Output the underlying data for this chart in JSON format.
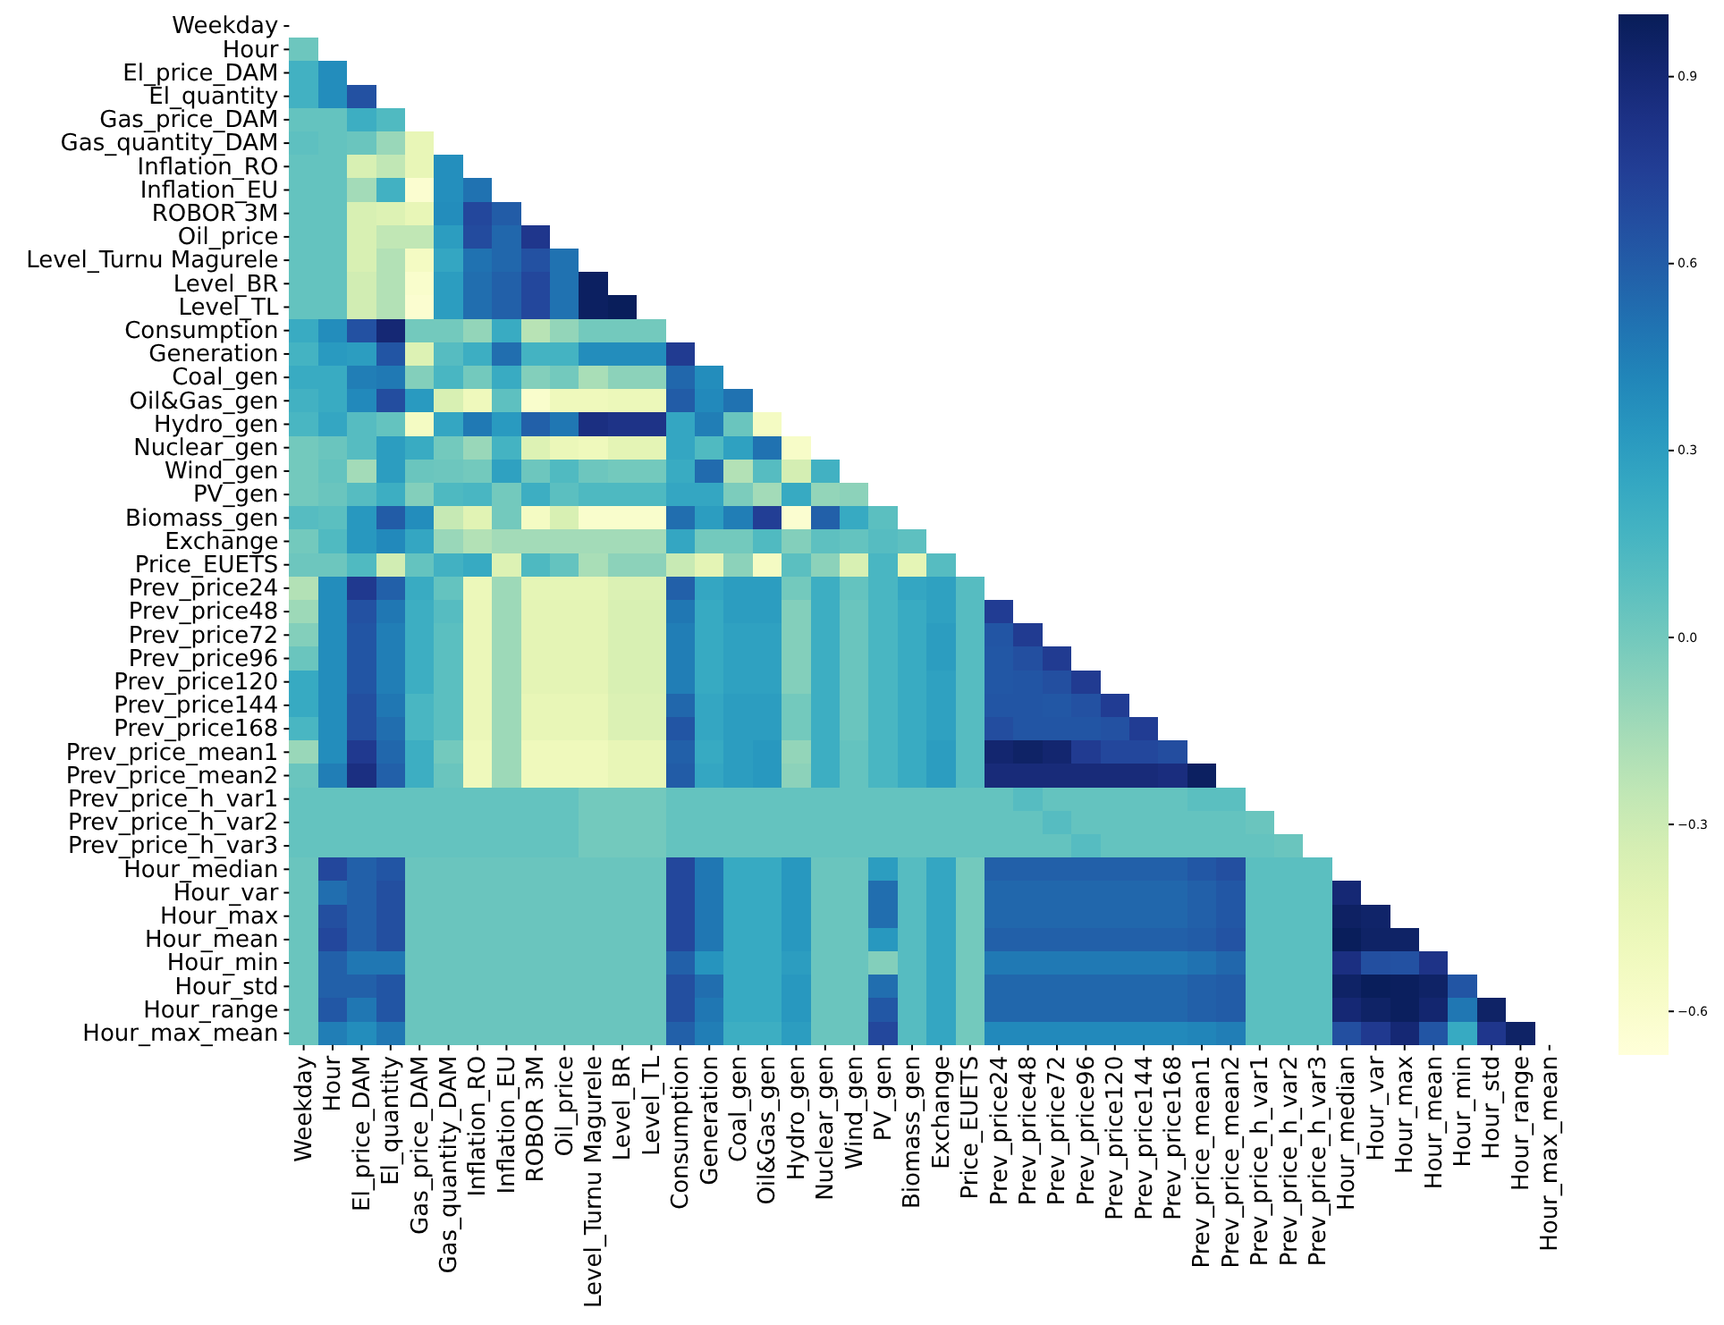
{
  "chart_data": {
    "type": "heatmap",
    "categories": [
      "Weekday",
      "Hour",
      "El_price_DAM",
      "El_quantity",
      "Gas_price_DAM",
      "Gas_quantity_DAM",
      "Inflation_RO",
      "Inflation_EU",
      "ROBOR 3M",
      "Oil_price",
      "Level_Turnu Magurele",
      "Level_BR",
      "Level_TL",
      "Consumption",
      "Generation",
      "Coal_gen",
      "Oil&Gas_gen",
      "Hydro_gen",
      "Nuclear_gen",
      "Wind_gen",
      "PV_gen",
      "Biomass_gen",
      "Exchange",
      "Price_EUETS",
      "Prev_price24",
      "Prev_price48",
      "Prev_price72",
      "Prev_price96",
      "Prev_price120",
      "Prev_price144",
      "Prev_price168",
      "Prev_price_mean1",
      "Prev_price_mean2",
      "Prev_price_h_var1",
      "Prev_price_h_var2",
      "Prev_price_h_var3",
      "Hour_median",
      "Hour_var",
      "Hour_max",
      "Hour_mean",
      "Hour_min",
      "Hour_std",
      "Hour_range",
      "Hour_max_mean"
    ],
    "y_categories": [
      "Weekday",
      "Hour",
      "El_price_DAM",
      "El_quantity",
      "Gas_price_DAM",
      "Gas_quantity_DAM",
      "Inflation_RO",
      "Inflation_EU",
      "ROBOR 3M",
      "Oil_price",
      "Level_Turnu Magurele",
      "Level_BR",
      "Level_TL",
      "Consumption",
      "Generation",
      "Coal_gen",
      "Oil&Gas_gen",
      "Hydro_gen",
      "Nuclear_gen",
      "Wind_gen",
      "PV_gen",
      "Biomass_gen",
      "Exchange",
      "Price_EUETS",
      "Prev_price24",
      "Prev_price48",
      "Prev_price72",
      "Prev_price96",
      "Prev_price120",
      "Prev_price144",
      "Prev_price168",
      "Prev_price_mean1",
      "Prev_price_mean2",
      "Prev_price_h_var1",
      "Prev_price_h_var2",
      "Prev_price_h_var3",
      "Hour_median",
      "Hour_var",
      "Hour_max",
      "Hour_mean",
      "Hour_min",
      "Hour_std",
      "Hour_range",
      "Hour_max_mean"
    ],
    "clim": [
      -0.67,
      1.0
    ],
    "cticks": [
      0.9,
      0.6,
      0.3,
      {
        "value": 0,
        "label": "0.0"
      },
      {
        "value": -0.3,
        "label": "−0.3"
      },
      {
        "value": -0.6,
        "label": "−0.6"
      }
    ],
    "cells": [
      [
        null,
        null,
        null,
        null,
        null,
        null,
        null,
        null,
        null,
        null,
        null,
        null,
        null,
        null,
        null,
        null,
        null,
        null,
        null,
        null,
        null,
        null,
        null,
        null,
        null,
        null,
        null,
        null,
        null,
        null,
        null,
        null,
        null,
        null,
        null,
        null,
        null,
        null,
        null,
        null,
        null,
        null,
        null,
        null
      ],
      [
        0.02,
        null,
        null,
        null,
        null,
        null,
        null,
        null,
        null,
        null,
        null,
        null,
        null,
        null,
        null,
        null,
        null,
        null,
        null,
        null,
        null,
        null,
        null,
        null,
        null,
        null,
        null,
        null,
        null,
        null,
        null,
        null,
        null,
        null,
        null,
        null,
        null,
        null,
        null,
        null,
        null,
        null,
        null,
        null
      ],
      [
        0.18,
        0.38,
        null,
        null,
        null,
        null,
        null,
        null,
        null,
        null,
        null,
        null,
        null,
        null,
        null,
        null,
        null,
        null,
        null,
        null,
        null,
        null,
        null,
        null,
        null,
        null,
        null,
        null,
        null,
        null,
        null,
        null,
        null,
        null,
        null,
        null,
        null,
        null,
        null,
        null,
        null,
        null,
        null,
        null
      ],
      [
        0.18,
        0.38,
        0.65,
        null,
        null,
        null,
        null,
        null,
        null,
        null,
        null,
        null,
        null,
        null,
        null,
        null,
        null,
        null,
        null,
        null,
        null,
        null,
        null,
        null,
        null,
        null,
        null,
        null,
        null,
        null,
        null,
        null,
        null,
        null,
        null,
        null,
        null,
        null,
        null,
        null,
        null,
        null,
        null,
        null
      ],
      [
        0.05,
        0.05,
        0.2,
        0.12,
        null,
        null,
        null,
        null,
        null,
        null,
        null,
        null,
        null,
        null,
        null,
        null,
        null,
        null,
        null,
        null,
        null,
        null,
        null,
        null,
        null,
        null,
        null,
        null,
        null,
        null,
        null,
        null,
        null,
        null,
        null,
        null,
        null,
        null,
        null,
        null,
        null,
        null,
        null,
        null
      ],
      [
        0.07,
        0.05,
        0.03,
        -0.12,
        -0.45,
        null,
        null,
        null,
        null,
        null,
        null,
        null,
        null,
        null,
        null,
        null,
        null,
        null,
        null,
        null,
        null,
        null,
        null,
        null,
        null,
        null,
        null,
        null,
        null,
        null,
        null,
        null,
        null,
        null,
        null,
        null,
        null,
        null,
        null,
        null,
        null,
        null,
        null,
        null
      ],
      [
        0.05,
        0.05,
        -0.35,
        -0.25,
        -0.45,
        0.37,
        null,
        null,
        null,
        null,
        null,
        null,
        null,
        null,
        null,
        null,
        null,
        null,
        null,
        null,
        null,
        null,
        null,
        null,
        null,
        null,
        null,
        null,
        null,
        null,
        null,
        null,
        null,
        null,
        null,
        null,
        null,
        null,
        null,
        null,
        null,
        null,
        null,
        null
      ],
      [
        0.05,
        0.05,
        -0.15,
        0.18,
        -0.62,
        0.37,
        0.5,
        null,
        null,
        null,
        null,
        null,
        null,
        null,
        null,
        null,
        null,
        null,
        null,
        null,
        null,
        null,
        null,
        null,
        null,
        null,
        null,
        null,
        null,
        null,
        null,
        null,
        null,
        null,
        null,
        null,
        null,
        null,
        null,
        null,
        null,
        null,
        null,
        null
      ],
      [
        0.05,
        0.05,
        -0.35,
        -0.38,
        -0.45,
        0.38,
        0.7,
        0.6,
        null,
        null,
        null,
        null,
        null,
        null,
        null,
        null,
        null,
        null,
        null,
        null,
        null,
        null,
        null,
        null,
        null,
        null,
        null,
        null,
        null,
        null,
        null,
        null,
        null,
        null,
        null,
        null,
        null,
        null,
        null,
        null,
        null,
        null,
        null,
        null
      ],
      [
        0.05,
        0.05,
        -0.35,
        -0.25,
        -0.25,
        0.3,
        0.68,
        0.55,
        0.8,
        null,
        null,
        null,
        null,
        null,
        null,
        null,
        null,
        null,
        null,
        null,
        null,
        null,
        null,
        null,
        null,
        null,
        null,
        null,
        null,
        null,
        null,
        null,
        null,
        null,
        null,
        null,
        null,
        null,
        null,
        null,
        null,
        null,
        null,
        null
      ],
      [
        0.05,
        0.05,
        -0.35,
        -0.2,
        -0.55,
        0.25,
        0.5,
        0.55,
        0.65,
        0.5,
        null,
        null,
        null,
        null,
        null,
        null,
        null,
        null,
        null,
        null,
        null,
        null,
        null,
        null,
        null,
        null,
        null,
        null,
        null,
        null,
        null,
        null,
        null,
        null,
        null,
        null,
        null,
        null,
        null,
        null,
        null,
        null,
        null,
        null
      ],
      [
        0.05,
        0.05,
        -0.32,
        -0.2,
        -0.6,
        0.3,
        0.52,
        0.58,
        0.7,
        0.5,
        0.97,
        null,
        null,
        null,
        null,
        null,
        null,
        null,
        null,
        null,
        null,
        null,
        null,
        null,
        null,
        null,
        null,
        null,
        null,
        null,
        null,
        null,
        null,
        null,
        null,
        null,
        null,
        null,
        null,
        null,
        null,
        null,
        null,
        null
      ],
      [
        0.05,
        0.05,
        -0.32,
        -0.2,
        -0.62,
        0.3,
        0.52,
        0.58,
        0.7,
        0.5,
        0.97,
        0.99,
        null,
        null,
        null,
        null,
        null,
        null,
        null,
        null,
        null,
        null,
        null,
        null,
        null,
        null,
        null,
        null,
        null,
        null,
        null,
        null,
        null,
        null,
        null,
        null,
        null,
        null,
        null,
        null,
        null,
        null,
        null,
        null
      ],
      [
        0.22,
        0.38,
        0.65,
        0.9,
        0,
        0,
        -0.1,
        0.22,
        -0.22,
        -0.1,
        0,
        0,
        0,
        null,
        null,
        null,
        null,
        null,
        null,
        null,
        null,
        null,
        null,
        null,
        null,
        null,
        null,
        null,
        null,
        null,
        null,
        null,
        null,
        null,
        null,
        null,
        null,
        null,
        null,
        null,
        null,
        null,
        null,
        null
      ],
      [
        0.17,
        0.32,
        0.3,
        0.63,
        -0.38,
        0.1,
        0.2,
        0.52,
        0.17,
        0.17,
        0.38,
        0.38,
        0.38,
        0.77,
        null,
        null,
        null,
        null,
        null,
        null,
        null,
        null,
        null,
        null,
        null,
        null,
        null,
        null,
        null,
        null,
        null,
        null,
        null,
        null,
        null,
        null,
        null,
        null,
        null,
        null,
        null,
        null,
        null,
        null
      ],
      [
        0.22,
        0.22,
        0.45,
        0.47,
        -0.05,
        0.15,
        0,
        0.22,
        -0.05,
        0,
        -0.17,
        -0.08,
        -0.08,
        0.55,
        0.38,
        null,
        null,
        null,
        null,
        null,
        null,
        null,
        null,
        null,
        null,
        null,
        null,
        null,
        null,
        null,
        null,
        null,
        null,
        null,
        null,
        null,
        null,
        null,
        null,
        null,
        null,
        null,
        null,
        null
      ],
      [
        0.18,
        0.22,
        0.4,
        0.67,
        0.32,
        -0.35,
        -0.5,
        0.07,
        -0.6,
        -0.5,
        -0.5,
        -0.48,
        -0.48,
        0.6,
        0.4,
        0.5,
        null,
        null,
        null,
        null,
        null,
        null,
        null,
        null,
        null,
        null,
        null,
        null,
        null,
        null,
        null,
        null,
        null,
        null,
        null,
        null,
        null,
        null,
        null,
        null,
        null,
        null,
        null,
        null
      ],
      [
        0.15,
        0.25,
        0.1,
        0.05,
        -0.55,
        0.25,
        0.47,
        0.32,
        0.58,
        0.48,
        0.85,
        0.82,
        0.82,
        0.25,
        0.45,
        0.03,
        -0.55,
        null,
        null,
        null,
        null,
        null,
        null,
        null,
        null,
        null,
        null,
        null,
        null,
        null,
        null,
        null,
        null,
        null,
        null,
        null,
        null,
        null,
        null,
        null,
        null,
        null,
        null,
        null
      ],
      [
        0,
        0.03,
        0.1,
        0.3,
        0.22,
        0,
        -0.12,
        0.17,
        -0.38,
        -0.47,
        -0.5,
        -0.42,
        -0.42,
        0.25,
        0.12,
        0.28,
        0.5,
        -0.58,
        null,
        null,
        null,
        null,
        null,
        null,
        null,
        null,
        null,
        null,
        null,
        null,
        null,
        null,
        null,
        null,
        null,
        null,
        null,
        null,
        null,
        null,
        null,
        null,
        null,
        null
      ],
      [
        0,
        0.05,
        -0.15,
        0.3,
        0.03,
        0.02,
        0,
        0.28,
        0.02,
        0.12,
        0.02,
        0,
        0,
        0.22,
        0.53,
        -0.2,
        0.1,
        -0.33,
        0.18,
        null,
        null,
        null,
        null,
        null,
        null,
        null,
        null,
        null,
        null,
        null,
        null,
        null,
        null,
        null,
        null,
        null,
        null,
        null,
        null,
        null,
        null,
        null,
        null,
        null
      ],
      [
        0,
        0.03,
        0.1,
        0.2,
        -0.05,
        0.13,
        0.15,
        0,
        0.2,
        0.08,
        0.13,
        0.13,
        0.13,
        0.25,
        0.25,
        -0.03,
        -0.15,
        0.23,
        -0.1,
        -0.08,
        null,
        null,
        null,
        null,
        null,
        null,
        null,
        null,
        null,
        null,
        null,
        null,
        null,
        null,
        null,
        null,
        null,
        null,
        null,
        null,
        null,
        null,
        null,
        null
      ],
      [
        0.1,
        0.08,
        0.33,
        0.6,
        0.38,
        -0.27,
        -0.4,
        0,
        -0.55,
        -0.35,
        -0.6,
        -0.6,
        -0.6,
        0.52,
        0.3,
        0.45,
        0.75,
        -0.62,
        0.58,
        0.23,
        0.08,
        null,
        null,
        null,
        null,
        null,
        null,
        null,
        null,
        null,
        null,
        null,
        null,
        null,
        null,
        null,
        null,
        null,
        null,
        null,
        null,
        null,
        null,
        null
      ],
      [
        0,
        0.12,
        0.33,
        0.4,
        0.25,
        -0.12,
        -0.2,
        -0.15,
        -0.15,
        -0.15,
        -0.15,
        -0.15,
        -0.15,
        0.25,
        0,
        0,
        0.12,
        -0.05,
        0.07,
        0.05,
        0.1,
        0.07,
        null,
        null,
        null,
        null,
        null,
        null,
        null,
        null,
        null,
        null,
        null,
        null,
        null,
        null,
        null,
        null,
        null,
        null,
        null,
        null,
        null,
        null
      ],
      [
        0.02,
        0.02,
        0.12,
        -0.32,
        0.05,
        0.18,
        0.23,
        -0.38,
        0.13,
        0.05,
        -0.17,
        -0.08,
        -0.08,
        -0.28,
        -0.42,
        -0.08,
        -0.55,
        0.08,
        -0.08,
        -0.35,
        0.15,
        -0.43,
        0.1,
        null,
        null,
        null,
        null,
        null,
        null,
        null,
        null,
        null,
        null,
        null,
        null,
        null,
        null,
        null,
        null,
        null,
        null,
        null,
        null,
        null
      ],
      [
        -0.2,
        0.38,
        0.78,
        0.58,
        0.22,
        0.05,
        -0.48,
        -0.13,
        -0.43,
        -0.43,
        -0.43,
        -0.37,
        -0.37,
        0.58,
        0.25,
        0.3,
        0.3,
        0,
        0.2,
        0.05,
        0.15,
        0.25,
        0.28,
        0.1,
        null,
        null,
        null,
        null,
        null,
        null,
        null,
        null,
        null,
        null,
        null,
        null,
        null,
        null,
        null,
        null,
        null,
        null,
        null,
        null
      ],
      [
        -0.13,
        0.38,
        0.65,
        0.48,
        0.2,
        0.1,
        -0.47,
        -0.13,
        -0.42,
        -0.42,
        -0.42,
        -0.35,
        -0.35,
        0.48,
        0.23,
        0.3,
        0.3,
        -0.05,
        0.2,
        0.03,
        0.15,
        0.22,
        0.28,
        0.1,
        0.76,
        null,
        null,
        null,
        null,
        null,
        null,
        null,
        null,
        null,
        null,
        null,
        null,
        null,
        null,
        null,
        null,
        null,
        null,
        null
      ],
      [
        -0.05,
        0.38,
        0.63,
        0.45,
        0.2,
        0.08,
        -0.47,
        -0.13,
        -0.42,
        -0.42,
        -0.42,
        -0.35,
        -0.35,
        0.45,
        0.23,
        0.28,
        0.28,
        -0.05,
        0.2,
        0.03,
        0.15,
        0.22,
        0.3,
        0.1,
        0.63,
        0.77,
        null,
        null,
        null,
        null,
        null,
        null,
        null,
        null,
        null,
        null,
        null,
        null,
        null,
        null,
        null,
        null,
        null,
        null
      ],
      [
        0.03,
        0.38,
        0.63,
        0.45,
        0.2,
        0.08,
        -0.47,
        -0.13,
        -0.42,
        -0.42,
        -0.42,
        -0.35,
        -0.35,
        0.45,
        0.23,
        0.28,
        0.28,
        -0.05,
        0.2,
        0.03,
        0.15,
        0.22,
        0.3,
        0.1,
        0.62,
        0.66,
        0.77,
        null,
        null,
        null,
        null,
        null,
        null,
        null,
        null,
        null,
        null,
        null,
        null,
        null,
        null,
        null,
        null,
        null
      ],
      [
        0.23,
        0.38,
        0.63,
        0.45,
        0.2,
        0.08,
        -0.47,
        -0.13,
        -0.42,
        -0.42,
        -0.42,
        -0.35,
        -0.35,
        0.45,
        0.23,
        0.28,
        0.28,
        -0.05,
        0.2,
        0.03,
        0.15,
        0.22,
        0.28,
        0.1,
        0.62,
        0.63,
        0.66,
        0.77,
        null,
        null,
        null,
        null,
        null,
        null,
        null,
        null,
        null,
        null,
        null,
        null,
        null,
        null,
        null,
        null
      ],
      [
        0.23,
        0.38,
        0.66,
        0.48,
        0.15,
        0.08,
        -0.47,
        -0.13,
        -0.45,
        -0.45,
        -0.45,
        -0.37,
        -0.37,
        0.55,
        0.25,
        0.3,
        0.3,
        0,
        0.2,
        0.03,
        0.15,
        0.22,
        0.28,
        0.1,
        0.63,
        0.63,
        0.62,
        0.65,
        0.76,
        null,
        null,
        null,
        null,
        null,
        null,
        null,
        null,
        null,
        null,
        null,
        null,
        null,
        null,
        null
      ],
      [
        0.15,
        0.38,
        0.66,
        0.52,
        0.15,
        0.08,
        -0.47,
        -0.13,
        -0.45,
        -0.45,
        -0.45,
        -0.37,
        -0.37,
        0.63,
        0.25,
        0.3,
        0.3,
        0,
        0.2,
        0.03,
        0.15,
        0.22,
        0.28,
        0.1,
        0.67,
        0.63,
        0.63,
        0.63,
        0.65,
        0.76,
        null,
        null,
        null,
        null,
        null,
        null,
        null,
        null,
        null,
        null,
        null,
        null,
        null,
        null
      ],
      [
        -0.12,
        0.38,
        0.78,
        0.55,
        0.2,
        0,
        -0.5,
        -0.13,
        -0.5,
        -0.5,
        -0.5,
        -0.45,
        -0.45,
        0.58,
        0.23,
        0.3,
        0.33,
        -0.1,
        0.2,
        0.05,
        0.15,
        0.22,
        0.3,
        0.1,
        0.92,
        0.95,
        0.92,
        0.77,
        0.7,
        0.7,
        0.67,
        null,
        null,
        null,
        null,
        null,
        null,
        null,
        null,
        null,
        null,
        null,
        null,
        null
      ],
      [
        0.03,
        0.45,
        0.85,
        0.58,
        0.2,
        0.03,
        -0.5,
        -0.13,
        -0.5,
        -0.5,
        -0.5,
        -0.45,
        -0.45,
        0.6,
        0.25,
        0.3,
        0.33,
        -0.08,
        0.2,
        0.05,
        0.15,
        0.22,
        0.3,
        0.1,
        0.88,
        0.88,
        0.88,
        0.88,
        0.88,
        0.88,
        0.86,
        0.97,
        null,
        null,
        null,
        null,
        null,
        null,
        null,
        null,
        null,
        null,
        null,
        null
      ],
      [
        0.05,
        0.05,
        0.05,
        0.05,
        0.05,
        0.05,
        0.05,
        0.05,
        0.05,
        0.05,
        0,
        0,
        0,
        0.05,
        0.05,
        0.05,
        0.05,
        0.05,
        0.05,
        0.05,
        0.05,
        0.05,
        0.05,
        0.05,
        0.05,
        0.1,
        0.05,
        0.05,
        0.05,
        0.05,
        0.05,
        0.08,
        0.08,
        null,
        null,
        null,
        null,
        null,
        null,
        null,
        null,
        null,
        null,
        null
      ],
      [
        0.05,
        0.05,
        0.05,
        0.05,
        0.05,
        0.05,
        0.05,
        0.05,
        0.05,
        0.05,
        0,
        0,
        0,
        0.05,
        0.05,
        0.05,
        0.05,
        0.05,
        0.05,
        0.05,
        0.05,
        0.05,
        0.05,
        0.05,
        0.05,
        0.05,
        0.1,
        0.05,
        0.05,
        0.05,
        0.05,
        0.05,
        0.05,
        0.03,
        null,
        null,
        null,
        null,
        null,
        null,
        null,
        null,
        null,
        null
      ],
      [
        0.05,
        0.05,
        0.05,
        0.05,
        0.05,
        0.05,
        0.05,
        0.05,
        0.05,
        0.05,
        0,
        0,
        0,
        0.05,
        0.05,
        0.05,
        0.05,
        0.05,
        0.05,
        0.05,
        0.05,
        0.05,
        0.05,
        0.05,
        0.05,
        0.05,
        0.05,
        0.1,
        0.05,
        0.05,
        0.05,
        0.05,
        0.05,
        0.05,
        0.03,
        null,
        null,
        null,
        null,
        null,
        null,
        null,
        null,
        null
      ],
      [
        0.03,
        0.7,
        0.58,
        0.63,
        0.03,
        0.03,
        0.03,
        0.03,
        0.03,
        0.03,
        0.03,
        0.03,
        0.03,
        0.7,
        0.48,
        0.23,
        0.23,
        0.33,
        0.03,
        0.03,
        0.3,
        0.1,
        0.25,
        0,
        0.58,
        0.58,
        0.58,
        0.58,
        0.58,
        0.58,
        0.58,
        0.62,
        0.66,
        0.08,
        0.08,
        0.08,
        null,
        null,
        null,
        null,
        null,
        null,
        null,
        null
      ],
      [
        0.03,
        0.52,
        0.58,
        0.66,
        0.03,
        0.03,
        0.03,
        0.03,
        0.03,
        0.03,
        0.03,
        0.03,
        0.03,
        0.7,
        0.48,
        0.23,
        0.23,
        0.33,
        0.03,
        0.03,
        0.52,
        0.1,
        0.25,
        0,
        0.55,
        0.55,
        0.55,
        0.55,
        0.55,
        0.55,
        0.55,
        0.58,
        0.62,
        0.08,
        0.08,
        0.08,
        0.9,
        null,
        null,
        null,
        null,
        null,
        null,
        null
      ],
      [
        0.03,
        0.66,
        0.58,
        0.66,
        0.03,
        0.03,
        0.03,
        0.03,
        0.03,
        0.03,
        0.03,
        0.03,
        0.03,
        0.7,
        0.48,
        0.23,
        0.23,
        0.33,
        0.03,
        0.03,
        0.52,
        0.1,
        0.25,
        0,
        0.55,
        0.55,
        0.55,
        0.55,
        0.55,
        0.55,
        0.55,
        0.58,
        0.62,
        0.08,
        0.08,
        0.08,
        0.96,
        0.94,
        null,
        null,
        null,
        null,
        null,
        null
      ],
      [
        0.03,
        0.7,
        0.58,
        0.66,
        0.03,
        0.03,
        0.03,
        0.03,
        0.03,
        0.03,
        0.03,
        0.03,
        0.03,
        0.7,
        0.48,
        0.23,
        0.23,
        0.33,
        0.03,
        0.03,
        0.33,
        0.1,
        0.25,
        0,
        0.58,
        0.58,
        0.58,
        0.58,
        0.58,
        0.58,
        0.58,
        0.6,
        0.64,
        0.08,
        0.08,
        0.08,
        0.99,
        0.95,
        0.95,
        null,
        null,
        null,
        null,
        null
      ],
      [
        0.03,
        0.58,
        0.48,
        0.48,
        0.03,
        0.03,
        0.03,
        0.03,
        0.03,
        0.03,
        0.03,
        0.03,
        0.03,
        0.58,
        0.35,
        0.23,
        0.23,
        0.3,
        0.03,
        0.03,
        -0.05,
        0.1,
        0.25,
        0,
        0.47,
        0.47,
        0.47,
        0.47,
        0.47,
        0.47,
        0.47,
        0.5,
        0.55,
        0.08,
        0.08,
        0.08,
        0.85,
        0.66,
        0.65,
        0.82,
        null,
        null,
        null,
        null
      ],
      [
        0.03,
        0.58,
        0.58,
        0.63,
        0.03,
        0.03,
        0.03,
        0.03,
        0.03,
        0.03,
        0.03,
        0.03,
        0.03,
        0.66,
        0.52,
        0.23,
        0.23,
        0.33,
        0.03,
        0.03,
        0.52,
        0.1,
        0.25,
        0,
        0.55,
        0.55,
        0.55,
        0.55,
        0.55,
        0.55,
        0.55,
        0.58,
        0.6,
        0.08,
        0.08,
        0.08,
        0.95,
        0.99,
        0.98,
        0.95,
        0.63,
        null,
        null,
        null
      ],
      [
        0.03,
        0.62,
        0.48,
        0.63,
        0.03,
        0.03,
        0.03,
        0.03,
        0.03,
        0.03,
        0.03,
        0.03,
        0.03,
        0.66,
        0.48,
        0.23,
        0.23,
        0.33,
        0.03,
        0.03,
        0.62,
        0.1,
        0.25,
        0,
        0.55,
        0.55,
        0.55,
        0.55,
        0.55,
        0.55,
        0.55,
        0.58,
        0.6,
        0.08,
        0.08,
        0.08,
        0.9,
        0.95,
        0.98,
        0.92,
        0.48,
        0.95,
        null,
        null
      ],
      [
        0.03,
        0.45,
        0.38,
        0.48,
        0.03,
        0.03,
        0.03,
        0.03,
        0.03,
        0.03,
        0.03,
        0.03,
        0.03,
        0.58,
        0.45,
        0.2,
        0.2,
        0.3,
        0.03,
        0.03,
        0.7,
        0.1,
        0.25,
        0,
        0.4,
        0.4,
        0.4,
        0.4,
        0.4,
        0.4,
        0.4,
        0.42,
        0.45,
        0.08,
        0.08,
        0.08,
        0.66,
        0.78,
        0.9,
        0.63,
        0.23,
        0.8,
        0.95,
        null
      ]
    ]
  }
}
